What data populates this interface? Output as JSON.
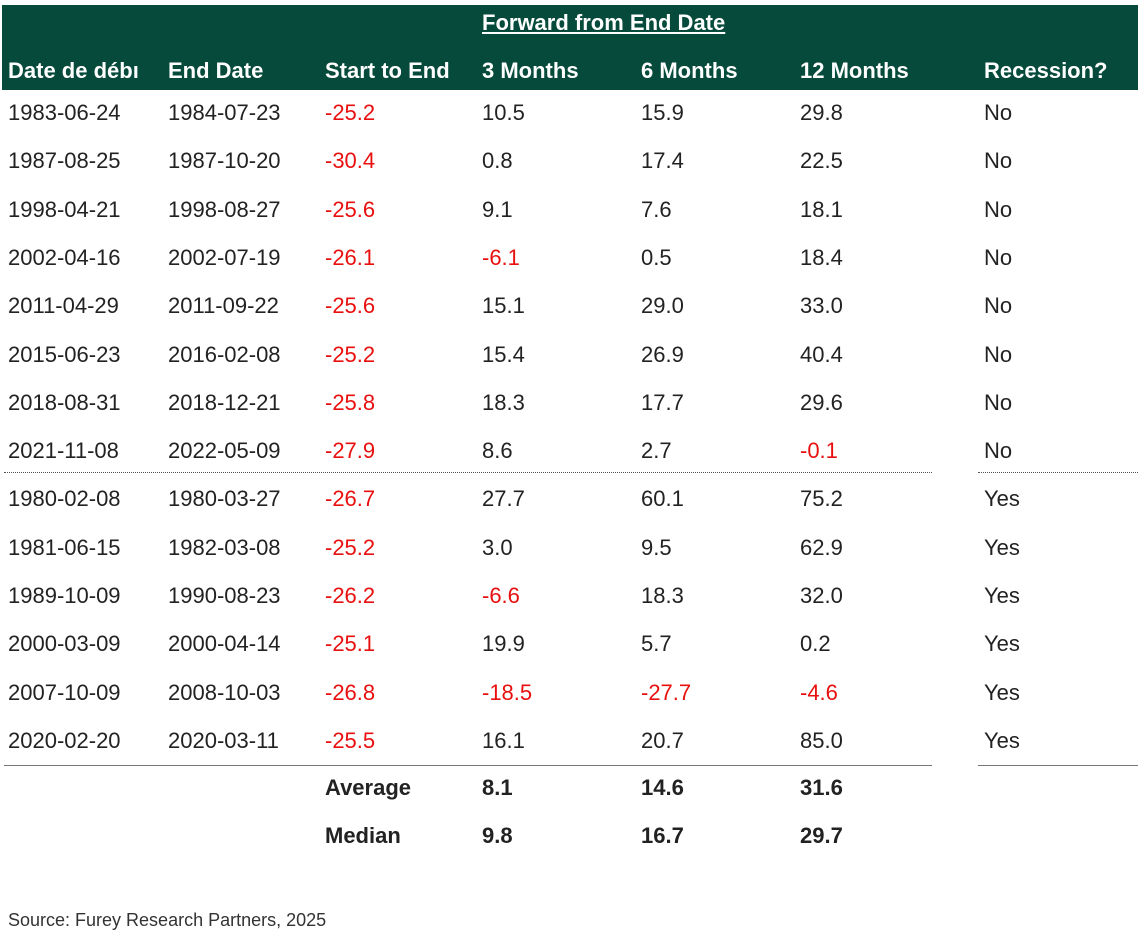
{
  "chart_data": {
    "type": "table",
    "group_header": "Forward from End Date",
    "columns": [
      "Date de débı",
      "End Date",
      "Start to End",
      "3 Months",
      "6 Months",
      "12 Months",
      "Recession?"
    ],
    "rows": [
      [
        "1983-06-24",
        "1984-07-23",
        "-25.2",
        "10.5",
        "15.9",
        "29.8",
        "No"
      ],
      [
        "1987-08-25",
        "1987-10-20",
        "-30.4",
        "0.8",
        "17.4",
        "22.5",
        "No"
      ],
      [
        "1998-04-21",
        "1998-08-27",
        "-25.6",
        "9.1",
        "7.6",
        "18.1",
        "No"
      ],
      [
        "2002-04-16",
        "2002-07-19",
        "-26.1",
        "-6.1",
        "0.5",
        "18.4",
        "No"
      ],
      [
        "2011-04-29",
        "2011-09-22",
        "-25.6",
        "15.1",
        "29.0",
        "33.0",
        "No"
      ],
      [
        "2015-06-23",
        "2016-02-08",
        "-25.2",
        "15.4",
        "26.9",
        "40.4",
        "No"
      ],
      [
        "2018-08-31",
        "2018-12-21",
        "-25.8",
        "18.3",
        "17.7",
        "29.6",
        "No"
      ],
      [
        "2021-11-08",
        "2022-05-09",
        "-27.9",
        "8.6",
        "2.7",
        "-0.1",
        "No"
      ],
      [
        "1980-02-08",
        "1980-03-27",
        "-26.7",
        "27.7",
        "60.1",
        "75.2",
        "Yes"
      ],
      [
        "1981-06-15",
        "1982-03-08",
        "-25.2",
        "3.0",
        "9.5",
        "62.9",
        "Yes"
      ],
      [
        "1989-10-09",
        "1990-08-23",
        "-26.2",
        "-6.6",
        "18.3",
        "32.0",
        "Yes"
      ],
      [
        "2000-03-09",
        "2000-04-14",
        "-25.1",
        "19.9",
        "5.7",
        "0.2",
        "Yes"
      ],
      [
        "2007-10-09",
        "2008-10-03",
        "-26.8",
        "-18.5",
        "-27.7",
        "-4.6",
        "Yes"
      ],
      [
        "2020-02-20",
        "2020-03-11",
        "-25.5",
        "16.1",
        "20.7",
        "85.0",
        "Yes"
      ]
    ],
    "summary": [
      {
        "label": "Average",
        "values": [
          "8.1",
          "14.6",
          "31.6"
        ]
      },
      {
        "label": "Median",
        "values": [
          "9.8",
          "16.7",
          "29.7"
        ]
      }
    ]
  },
  "source": "Source: Furey Research Partners, 2025",
  "colors": {
    "header_bg": "#054a3a",
    "header_text": "#ffffff",
    "negative": "#e8100f",
    "text": "#222222"
  }
}
